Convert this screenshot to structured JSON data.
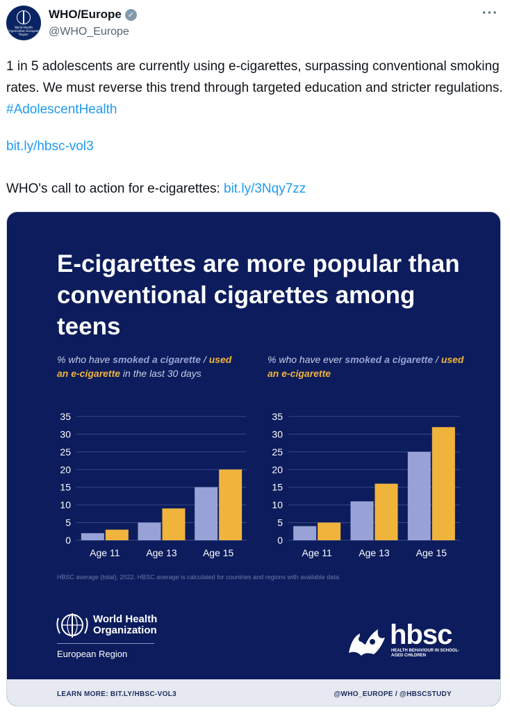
{
  "account": {
    "display_name": "WHO/Europe",
    "handle": "@WHO_Europe",
    "avatar_text": "World Health Organization European Region"
  },
  "tweet": {
    "text_main": "1 in 5 adolescents are currently using e-cigarettes, surpassing conventional smoking rates. We must reverse this trend through targeted education and stricter regulations. ",
    "hashtag": "#AdolescentHealth",
    "link1": "bit.ly/hbsc-vol3",
    "cta_text": "WHO's call to action for e-cigarettes: ",
    "link2": "bit.ly/3Nqy7zz"
  },
  "icons": {
    "verified": "verified-badge-icon",
    "more": "more-options-icon"
  },
  "card": {
    "title": "E-cigarettes are more popular than conventional cigarettes among teens",
    "left_sub_prefix": "% who have ",
    "left_sub_smoked": "smoked  a cigarette",
    "left_sub_sep": " / ",
    "left_sub_ecig": "used an e-cigarette",
    "left_sub_suffix": " in the last 30 days",
    "right_sub_prefix": "% who have ever ",
    "right_sub_smoked": "smoked a cigarette",
    "right_sub_sep": " / ",
    "right_sub_ecig": "used an e-cigarette",
    "footnote": "HBSC average (total), 2022. HBSC average is calculated for countries and regions with available data.",
    "who_name_line1": "World Health",
    "who_name_line2": "Organization",
    "who_region": "European Region",
    "hbsc_word": "hbsc",
    "hbsc_tagline": "HEALTH BEHAVIOUR IN SCHOOL-AGED CHILDREN",
    "footer_left": "LEARN MORE: BIT.LY/HBSC-VOL3",
    "footer_right": "@WHO_EUROPE / @HBSCSTUDY"
  },
  "colors": {
    "card_bg": "#0c1c5c",
    "cigarette": "#98a2d6",
    "e_cigarette": "#f0b43c",
    "link": "#1d9bf0"
  },
  "chart_data": [
    {
      "type": "bar",
      "title": "% who have smoked a cigarette / used an e-cigarette in the last 30 days",
      "categories": [
        "Age 11",
        "Age 13",
        "Age 15"
      ],
      "series": [
        {
          "name": "smoked a cigarette",
          "values": [
            2,
            5,
            15
          ]
        },
        {
          "name": "used an e-cigarette",
          "values": [
            3,
            9,
            20
          ]
        }
      ],
      "ylim": [
        0,
        35
      ],
      "yticks": [
        0,
        5,
        10,
        15,
        20,
        25,
        30,
        35
      ],
      "grid": true
    },
    {
      "type": "bar",
      "title": "% who have ever smoked a cigarette / used an e-cigarette",
      "categories": [
        "Age 11",
        "Age 13",
        "Age 15"
      ],
      "series": [
        {
          "name": "smoked a cigarette",
          "values": [
            4,
            11,
            25
          ]
        },
        {
          "name": "used an e-cigarette",
          "values": [
            5,
            16,
            32
          ]
        }
      ],
      "ylim": [
        0,
        35
      ],
      "yticks": [
        0,
        5,
        10,
        15,
        20,
        25,
        30,
        35
      ],
      "grid": true
    }
  ]
}
